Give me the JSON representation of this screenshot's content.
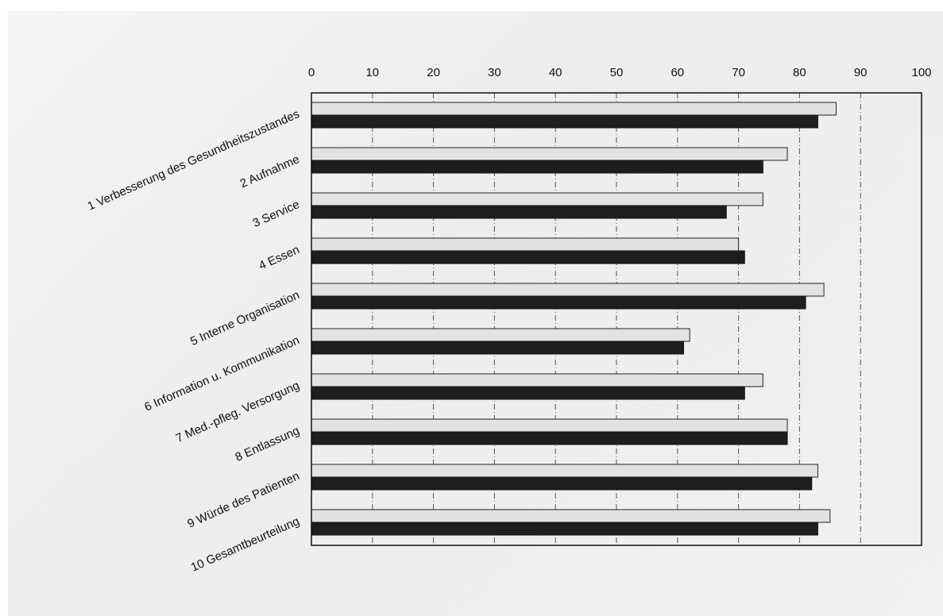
{
  "chart_data": {
    "type": "bar",
    "orientation": "horizontal",
    "categories": [
      "1 Verbesserung des Gesundheitszustandes",
      "2 Aufnahme",
      "3 Service",
      "4 Essen",
      "5 Interne Organisation",
      "6 Information u. Kommunikation",
      "7 Med.-pfleg. Versorgung",
      "8 Entlassung",
      "9 Würde des Patienten",
      "10 Gesamtbeurteilung"
    ],
    "series": [
      {
        "values": [
          86,
          78,
          74,
          70,
          84,
          62,
          74,
          78,
          83,
          85
        ],
        "color": "#e2e2e2"
      },
      {
        "values": [
          83,
          74,
          68,
          71,
          81,
          61,
          71,
          78,
          82,
          83
        ],
        "color": "#1e1e1e"
      }
    ],
    "xlim": [
      0,
      100
    ],
    "xticks": [
      "0",
      "10",
      "20",
      "30",
      "40",
      "50",
      "60",
      "70",
      "80",
      "90",
      "100"
    ],
    "x_axis_position": "top",
    "grid": "vertical dash-dot",
    "legend": "none"
  }
}
